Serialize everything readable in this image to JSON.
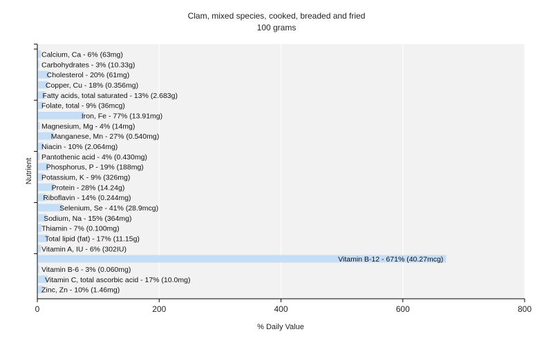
{
  "chart_data": {
    "type": "bar",
    "orientation": "horizontal",
    "title": "Clam, mixed species, cooked, breaded and fried",
    "subtitle": "100 grams",
    "xlabel": "% Daily Value",
    "ylabel": "Nutrient",
    "xlim": [
      0,
      800
    ],
    "xticks": [
      0,
      200,
      400,
      600,
      800
    ],
    "grid": true,
    "legend": false,
    "colors": {
      "bar": "#c6ddf6",
      "background": "#f2f2f2",
      "grid": "#ffffff",
      "axis": "#000000"
    },
    "categories": [
      "Calcium, Ca - 6% (63mg)",
      "Carbohydrates - 3% (10.33g)",
      "Cholesterol - 20% (61mg)",
      "Copper, Cu - 18% (0.356mg)",
      "Fatty acids, total saturated - 13% (2.683g)",
      "Folate, total - 9% (36mcg)",
      "Iron, Fe - 77% (13.91mg)",
      "Magnesium, Mg - 4% (14mg)",
      "Manganese, Mn - 27% (0.540mg)",
      "Niacin - 10% (2.064mg)",
      "Pantothenic acid - 4% (0.430mg)",
      "Phosphorus, P - 19% (188mg)",
      "Potassium, K - 9% (326mg)",
      "Protein - 28% (14.24g)",
      "Riboflavin - 14% (0.244mg)",
      "Selenium, Se - 41% (28.9mcg)",
      "Sodium, Na - 15% (364mg)",
      "Thiamin - 7% (0.100mg)",
      "Total lipid (fat) - 17% (11.15g)",
      "Vitamin A, IU - 6% (302IU)",
      "Vitamin B-12 - 671% (40.27mcg)",
      "Vitamin B-6 - 3% (0.060mg)",
      "Vitamin C, total ascorbic acid - 17% (10.0mg)",
      "Zinc, Zn - 10% (1.46mg)"
    ],
    "values": [
      6,
      3,
      20,
      18,
      13,
      9,
      77,
      4,
      27,
      10,
      4,
      19,
      9,
      28,
      14,
      41,
      15,
      7,
      17,
      6,
      671,
      3,
      17,
      10
    ]
  }
}
